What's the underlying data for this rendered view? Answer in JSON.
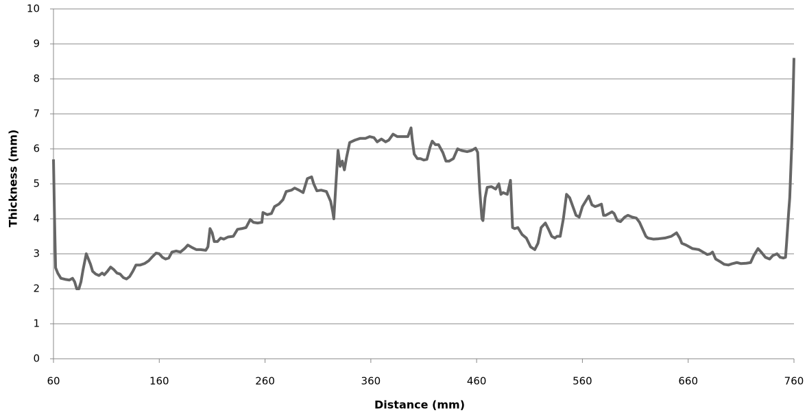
{
  "chart_data": {
    "type": "line",
    "x_label": "Distance (mm)",
    "y_label": "Thickness (mm)",
    "x": [
      60,
      61,
      62,
      64,
      67,
      71,
      75,
      78,
      80,
      82,
      84,
      86,
      88,
      91,
      93,
      95,
      97,
      100,
      103,
      106,
      108,
      111,
      114,
      117,
      120,
      123,
      126,
      129,
      132,
      135,
      138,
      142,
      146,
      150,
      153,
      157,
      160,
      163,
      166,
      169,
      172,
      176,
      180,
      184,
      187,
      191,
      195,
      199,
      204,
      206,
      208,
      210,
      212,
      215,
      218,
      221,
      225,
      230,
      234,
      238,
      242,
      246,
      249,
      253,
      257,
      258,
      262,
      266,
      269,
      273,
      277,
      280,
      285,
      288,
      292,
      296,
      300,
      304,
      306,
      309,
      313,
      318,
      322,
      324,
      325,
      327,
      329,
      331,
      333,
      335,
      337,
      340,
      345,
      350,
      355,
      359,
      363,
      366,
      370,
      374,
      377,
      381,
      385,
      389,
      395,
      398,
      399,
      401,
      404,
      407,
      410,
      413,
      416,
      418,
      421,
      424,
      428,
      431,
      434,
      438,
      442,
      446,
      451,
      455,
      459,
      461,
      463,
      465,
      466,
      468,
      470,
      474,
      478,
      481,
      483,
      485,
      489,
      492,
      494,
      496,
      499,
      503,
      507,
      511,
      515,
      518,
      521,
      525,
      528,
      531,
      534,
      536,
      539,
      542,
      545,
      548,
      551,
      554,
      557,
      560,
      563,
      566,
      569,
      572,
      575,
      578,
      580,
      582,
      585,
      588,
      590,
      593,
      596,
      600,
      603,
      607,
      611,
      614,
      617,
      620,
      622,
      627,
      632,
      638,
      644,
      649,
      652,
      654,
      658,
      664,
      670,
      674,
      678,
      681,
      683,
      686,
      690,
      694,
      698,
      702,
      706,
      710,
      715,
      719,
      722,
      726,
      729,
      733,
      737,
      740,
      744,
      747,
      750,
      752,
      753,
      755,
      756,
      758,
      759,
      760
    ],
    "values": [
      5.7,
      4.0,
      2.6,
      2.45,
      2.3,
      2.27,
      2.25,
      2.3,
      2.2,
      2.0,
      2.0,
      2.2,
      2.55,
      3.0,
      2.85,
      2.7,
      2.5,
      2.42,
      2.38,
      2.45,
      2.4,
      2.5,
      2.62,
      2.55,
      2.45,
      2.42,
      2.32,
      2.28,
      2.35,
      2.5,
      2.68,
      2.68,
      2.72,
      2.8,
      2.9,
      3.02,
      3.0,
      2.9,
      2.85,
      2.88,
      3.05,
      3.08,
      3.05,
      3.15,
      3.25,
      3.18,
      3.12,
      3.12,
      3.1,
      3.2,
      3.72,
      3.6,
      3.35,
      3.35,
      3.45,
      3.42,
      3.48,
      3.5,
      3.7,
      3.72,
      3.75,
      3.98,
      3.9,
      3.88,
      3.9,
      4.18,
      4.12,
      4.15,
      4.35,
      4.42,
      4.55,
      4.78,
      4.82,
      4.88,
      4.82,
      4.75,
      5.15,
      5.2,
      5.0,
      4.8,
      4.82,
      4.78,
      4.5,
      4.2,
      4.0,
      5.0,
      5.95,
      5.5,
      5.65,
      5.4,
      5.75,
      6.18,
      6.25,
      6.3,
      6.3,
      6.35,
      6.32,
      6.2,
      6.28,
      6.2,
      6.25,
      6.42,
      6.35,
      6.35,
      6.35,
      6.6,
      6.3,
      5.85,
      5.72,
      5.72,
      5.68,
      5.7,
      6.05,
      6.22,
      6.12,
      6.12,
      5.9,
      5.65,
      5.65,
      5.72,
      6.0,
      5.95,
      5.92,
      5.95,
      6.02,
      5.9,
      4.8,
      4.0,
      3.95,
      4.6,
      4.9,
      4.92,
      4.85,
      5.0,
      4.7,
      4.75,
      4.7,
      5.1,
      3.75,
      3.72,
      3.75,
      3.55,
      3.45,
      3.2,
      3.12,
      3.3,
      3.75,
      3.88,
      3.7,
      3.5,
      3.45,
      3.5,
      3.5,
      4.0,
      4.7,
      4.6,
      4.35,
      4.1,
      4.05,
      4.35,
      4.5,
      4.65,
      4.4,
      4.35,
      4.38,
      4.42,
      4.1,
      4.1,
      4.15,
      4.2,
      4.15,
      3.95,
      3.92,
      4.05,
      4.1,
      4.05,
      4.02,
      3.9,
      3.7,
      3.5,
      3.45,
      3.42,
      3.43,
      3.45,
      3.5,
      3.6,
      3.45,
      3.3,
      3.25,
      3.15,
      3.12,
      3.05,
      2.98,
      3.0,
      3.05,
      2.85,
      2.78,
      2.7,
      2.68,
      2.72,
      2.75,
      2.72,
      2.73,
      2.75,
      2.95,
      3.15,
      3.05,
      2.9,
      2.85,
      2.95,
      3.0,
      2.9,
      2.88,
      2.9,
      3.3,
      4.2,
      4.6,
      6.2,
      7.3,
      8.6
    ],
    "color": "#666666",
    "xlim": [
      60,
      760
    ],
    "xticks": [
      60,
      160,
      260,
      360,
      460,
      560,
      660,
      760
    ],
    "ylim": [
      0,
      10
    ],
    "yticks": [
      0,
      1,
      2,
      3,
      4,
      5,
      6,
      7,
      8,
      9,
      10
    ],
    "grid": true
  }
}
